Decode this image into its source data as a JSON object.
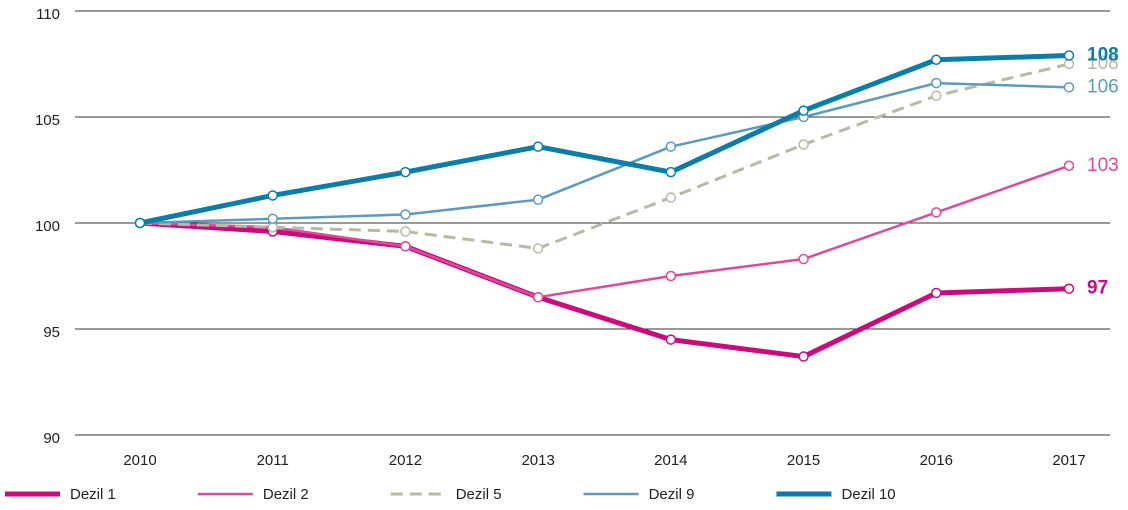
{
  "chart_data": {
    "type": "line",
    "x": [
      "2010",
      "2011",
      "2012",
      "2013",
      "2014",
      "2015",
      "2016",
      "2017"
    ],
    "ylim": [
      90,
      110
    ],
    "yticks": [
      90,
      95,
      100,
      105,
      110
    ],
    "grid": true,
    "legend": "bottom",
    "series": [
      {
        "name": "Dezil 1",
        "color": "#cc0a7e",
        "width": 5,
        "dash": false,
        "values": [
          100,
          99.6,
          98.9,
          96.5,
          94.5,
          93.7,
          96.7,
          96.9
        ],
        "value_labels": [
          null,
          null,
          null,
          null,
          null,
          null,
          null,
          "97"
        ]
      },
      {
        "name": "Dezil 2",
        "color": "#e0489c",
        "width": 2.5,
        "dash": false,
        "values": [
          100,
          99.8,
          98.9,
          96.5,
          97.5,
          98.3,
          100.5,
          102.7
        ],
        "value_labels": [
          null,
          null,
          null,
          null,
          null,
          null,
          null,
          "103"
        ]
      },
      {
        "name": "Dezil 5",
        "color": "#b9b9a3",
        "width": 3,
        "dash": true,
        "values": [
          100,
          99.8,
          99.6,
          98.8,
          101.2,
          103.7,
          106.0,
          107.5
        ],
        "value_labels": [
          null,
          null,
          null,
          null,
          null,
          null,
          null,
          "108"
        ]
      },
      {
        "name": "Dezil 9",
        "color": "#5b9bc0",
        "width": 2.5,
        "dash": false,
        "values": [
          100,
          100.2,
          100.4,
          101.1,
          103.6,
          105.0,
          106.6,
          106.4
        ],
        "value_labels": [
          null,
          null,
          null,
          null,
          null,
          null,
          null,
          "106"
        ]
      },
      {
        "name": "Dezil 10",
        "color": "#0a7ea8",
        "width": 5,
        "dash": false,
        "values": [
          100,
          101.3,
          102.4,
          103.6,
          102.4,
          105.3,
          107.7,
          107.9
        ],
        "value_labels": [
          null,
          null,
          null,
          null,
          null,
          null,
          null,
          "108"
        ]
      }
    ]
  }
}
